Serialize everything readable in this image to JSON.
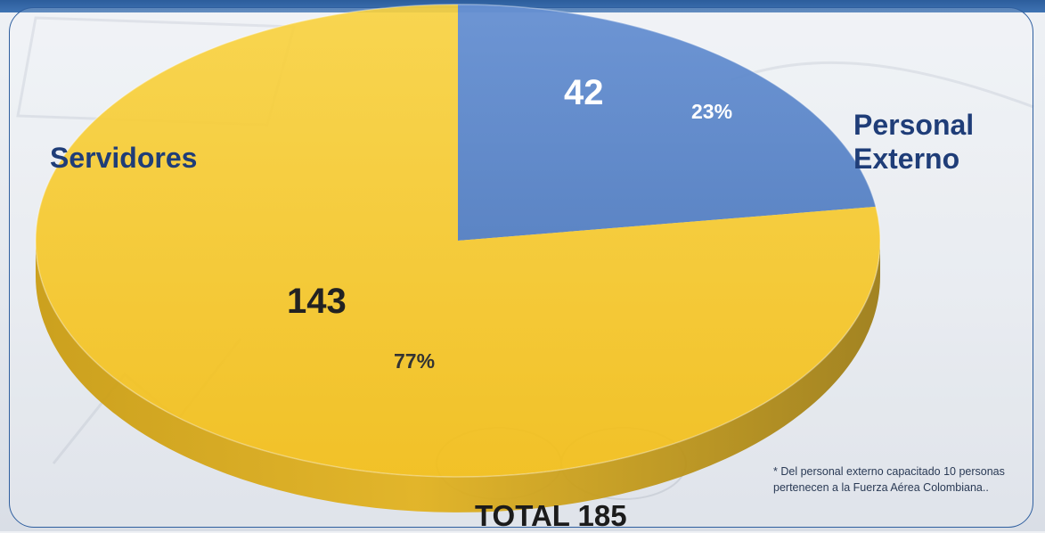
{
  "chart_data": {
    "type": "pie",
    "style": "3d",
    "slices": [
      {
        "label": "Personal Externo",
        "value": 42,
        "percent": "23%",
        "color": "#5b86c9"
      },
      {
        "label": "Servidores",
        "value": 143,
        "percent": "77%",
        "color": "#f5c21a"
      }
    ],
    "total_text": "TOTAL 185"
  },
  "footnote": "* Del personal externo capacitado 10 personas pertenecen a la Fuerza Aérea Colombiana..",
  "colors": {
    "frame_border": "#2f5f9f",
    "label_blue": "#1f3d78",
    "pie_blue": "#5b86c9",
    "pie_gold": "#f5c21a"
  }
}
